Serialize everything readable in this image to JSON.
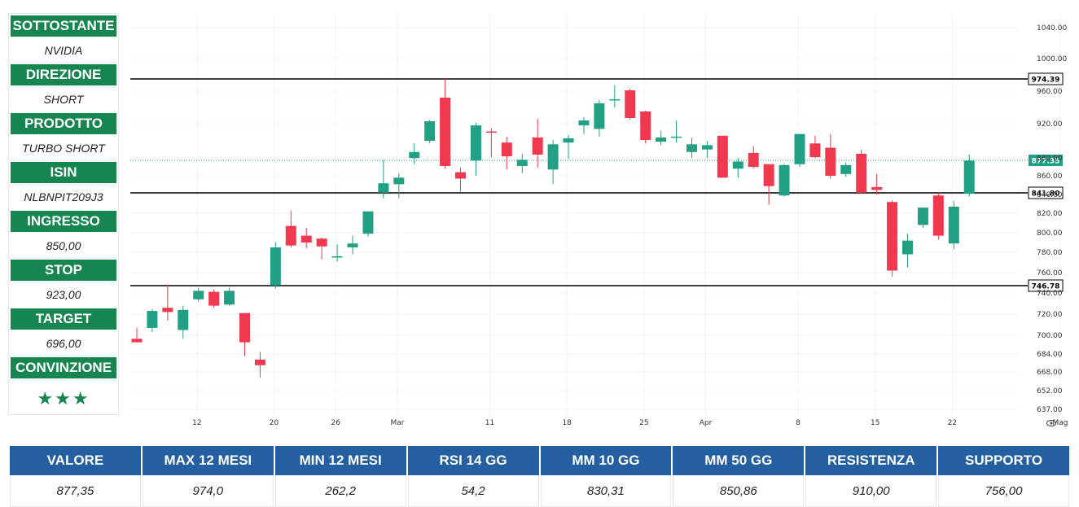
{
  "panel": {
    "items": [
      {
        "label": "SOTTOSTANTE",
        "value": "NVIDIA"
      },
      {
        "label": "DIREZIONE",
        "value": "SHORT"
      },
      {
        "label": "PRODOTTO",
        "value": "TURBO SHORT"
      },
      {
        "label": "ISIN",
        "value": "NLBNPIT209J3"
      },
      {
        "label": "INGRESSO",
        "value": "850,00"
      },
      {
        "label": "STOP",
        "value": "923,00"
      },
      {
        "label": "TARGET",
        "value": "696,00"
      },
      {
        "label": "CONVINZIONE",
        "value": "★★★"
      }
    ]
  },
  "stats": {
    "headers": [
      "VALORE",
      "MAX 12 MESI",
      "MIN 12 MESI",
      "RSI 14 GG",
      "MM 10 GG",
      "MM 50 GG",
      "RESISTENZA",
      "SUPPORTO"
    ],
    "values": [
      "877,35",
      "974,0",
      "262,2",
      "54,2",
      "830,31",
      "850,86",
      "910,00",
      "756,00"
    ]
  },
  "colors": {
    "up": "#22a085",
    "down": "#f0394f",
    "panel_header": "#16854f",
    "table_header": "#235fa1"
  },
  "chart_data": {
    "type": "candlestick",
    "y_ticks": [
      637,
      652,
      668,
      684,
      700,
      720,
      740,
      760,
      780,
      800,
      820,
      840,
      860,
      880,
      920,
      960,
      1000,
      1040
    ],
    "y_tick_labels": [
      "637.00",
      "652.00",
      "668.00",
      "684.00",
      "700.00",
      "720.00",
      "740.00",
      "760.00",
      "780.00",
      "800.00",
      "820.00",
      "840.00",
      "860.00",
      "880.00",
      "920.00",
      "960.00",
      "1000.00",
      "1040.00"
    ],
    "x_labels": [
      {
        "label": "12",
        "index": 2
      },
      {
        "label": "20",
        "index": 7
      },
      {
        "label": "26",
        "index": 11
      },
      {
        "label": "Mar",
        "index": 15
      },
      {
        "label": "11",
        "index": 21
      },
      {
        "label": "18",
        "index": 26
      },
      {
        "label": "25",
        "index": 31
      },
      {
        "label": "Apr",
        "index": 35
      },
      {
        "label": "8",
        "index": 41
      },
      {
        "label": "15",
        "index": 46
      },
      {
        "label": "22",
        "index": 51
      },
      {
        "label": "Mag",
        "index": 58
      }
    ],
    "levels": [
      {
        "value": 974.39,
        "label": "974.39",
        "style": "solid"
      },
      {
        "value": 841.8,
        "label": "841.80",
        "style": "solid"
      },
      {
        "value": 746.78,
        "label": "746.78",
        "style": "solid"
      },
      {
        "value": 877.35,
        "label": "877.35",
        "style": "dotted"
      }
    ],
    "candles": [
      {
        "o": 697,
        "h": 707,
        "l": 694,
        "c": 694
      },
      {
        "o": 707,
        "h": 725,
        "l": 703,
        "c": 723
      },
      {
        "o": 726,
        "h": 748,
        "l": 714,
        "c": 722
      },
      {
        "o": 705,
        "h": 728,
        "l": 697,
        "c": 724
      },
      {
        "o": 734,
        "h": 745,
        "l": 732,
        "c": 742
      },
      {
        "o": 741,
        "h": 743,
        "l": 726,
        "c": 728
      },
      {
        "o": 729,
        "h": 745,
        "l": 728,
        "c": 742
      },
      {
        "o": 721,
        "h": 721,
        "l": 682,
        "c": 694
      },
      {
        "o": 679,
        "h": 686,
        "l": 663,
        "c": 674
      },
      {
        "o": 747,
        "h": 790,
        "l": 744,
        "c": 785
      },
      {
        "o": 807,
        "h": 823,
        "l": 785,
        "c": 787
      },
      {
        "o": 797,
        "h": 805,
        "l": 784,
        "c": 790
      },
      {
        "o": 794,
        "h": 795,
        "l": 773,
        "c": 786
      },
      {
        "o": 776,
        "h": 788,
        "l": 771,
        "c": 776
      },
      {
        "o": 785,
        "h": 797,
        "l": 778,
        "c": 789
      },
      {
        "o": 799,
        "h": 820,
        "l": 796,
        "c": 822
      },
      {
        "o": 842,
        "h": 878,
        "l": 836,
        "c": 852
      },
      {
        "o": 851,
        "h": 863,
        "l": 836,
        "c": 858
      },
      {
        "o": 880,
        "h": 897,
        "l": 873,
        "c": 887
      },
      {
        "o": 900,
        "h": 925,
        "l": 897,
        "c": 923
      },
      {
        "o": 952,
        "h": 975,
        "l": 868,
        "c": 871
      },
      {
        "o": 864,
        "h": 869,
        "l": 843,
        "c": 857
      },
      {
        "o": 877,
        "h": 921,
        "l": 860,
        "c": 918
      },
      {
        "o": 911,
        "h": 915,
        "l": 881,
        "c": 910
      },
      {
        "o": 898,
        "h": 905,
        "l": 867,
        "c": 882
      },
      {
        "o": 871,
        "h": 885,
        "l": 863,
        "c": 878
      },
      {
        "o": 904,
        "h": 926,
        "l": 869,
        "c": 884
      },
      {
        "o": 867,
        "h": 901,
        "l": 851,
        "c": 896
      },
      {
        "o": 898,
        "h": 907,
        "l": 879,
        "c": 903
      },
      {
        "o": 918,
        "h": 928,
        "l": 908,
        "c": 924
      },
      {
        "o": 914,
        "h": 949,
        "l": 905,
        "c": 945
      },
      {
        "o": 949,
        "h": 967,
        "l": 940,
        "c": 950
      },
      {
        "o": 961,
        "h": 963,
        "l": 925,
        "c": 927
      },
      {
        "o": 935,
        "h": 936,
        "l": 897,
        "c": 901
      },
      {
        "o": 899,
        "h": 912,
        "l": 895,
        "c": 904
      },
      {
        "o": 905,
        "h": 924,
        "l": 898,
        "c": 905
      },
      {
        "o": 887,
        "h": 904,
        "l": 880,
        "c": 896
      },
      {
        "o": 890,
        "h": 900,
        "l": 880,
        "c": 895
      },
      {
        "o": 906,
        "h": 906,
        "l": 858,
        "c": 858
      },
      {
        "o": 868,
        "h": 880,
        "l": 858,
        "c": 876
      },
      {
        "o": 886,
        "h": 894,
        "l": 868,
        "c": 870
      },
      {
        "o": 873,
        "h": 873,
        "l": 829,
        "c": 849
      },
      {
        "o": 839,
        "h": 873,
        "l": 838,
        "c": 872
      },
      {
        "o": 873,
        "h": 908,
        "l": 870,
        "c": 908
      },
      {
        "o": 897,
        "h": 906,
        "l": 880,
        "c": 881
      },
      {
        "o": 892,
        "h": 908,
        "l": 857,
        "c": 860
      },
      {
        "o": 862,
        "h": 875,
        "l": 859,
        "c": 872
      },
      {
        "o": 885,
        "h": 890,
        "l": 841,
        "c": 842
      },
      {
        "o": 848,
        "h": 862,
        "l": 840,
        "c": 845
      },
      {
        "o": 832,
        "h": 834,
        "l": 756,
        "c": 762
      },
      {
        "o": 778,
        "h": 799,
        "l": 765,
        "c": 792
      },
      {
        "o": 808,
        "h": 826,
        "l": 805,
        "c": 826
      },
      {
        "o": 839,
        "h": 842,
        "l": 793,
        "c": 797
      },
      {
        "o": 789,
        "h": 833,
        "l": 783,
        "c": 827
      },
      {
        "o": 841,
        "h": 884,
        "l": 838,
        "c": 877
      }
    ]
  }
}
